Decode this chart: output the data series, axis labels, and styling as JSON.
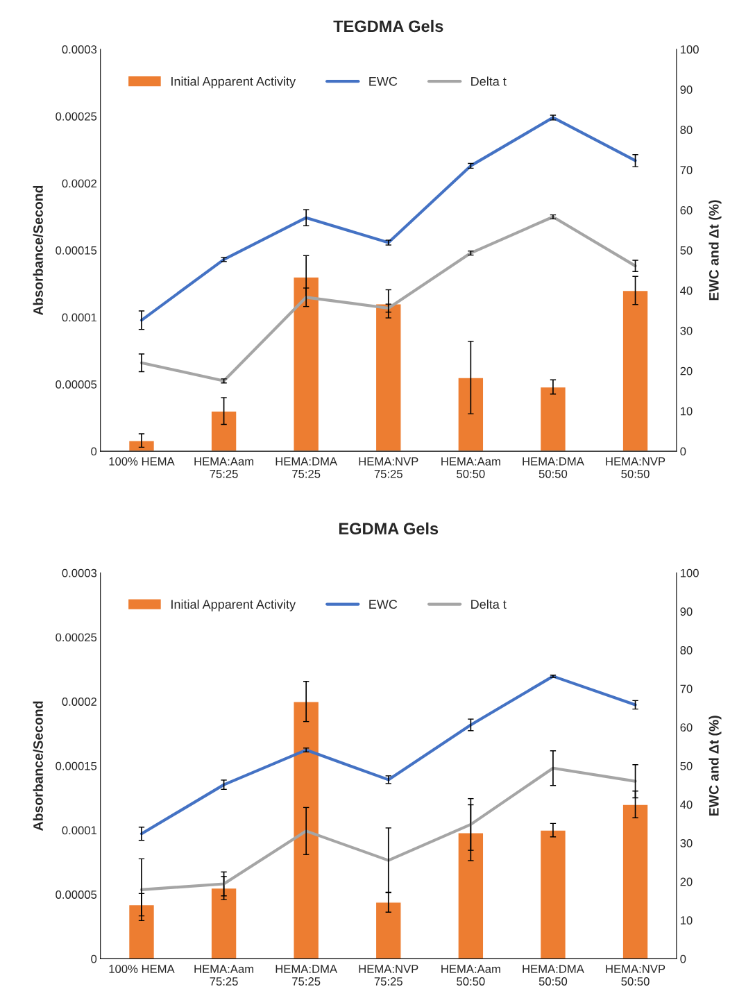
{
  "chart_data": [
    {
      "type": "bar",
      "title": "TEGDMA Gels",
      "ylabel": "Absorbance/Second",
      "y2label": "EWC and Δt (%)",
      "categories": [
        "100% HEMA",
        "HEMA:Aam\n75:25",
        "HEMA:DMA\n75:25",
        "HEMA:NVP\n75:25",
        "HEMA:Aam\n50:50",
        "HEMA:DMA\n50:50",
        "HEMA:NVP\n50:50"
      ],
      "ylim": [
        0,
        0.0003
      ],
      "yticks": [
        0,
        {
          "value": 5e-05,
          "label": "0.00005"
        },
        0.0001,
        0.00015,
        0.0002,
        0.00025,
        0.0003
      ],
      "y2lim": [
        0,
        100
      ],
      "y2ticks": [
        0,
        10,
        20,
        30,
        40,
        50,
        60,
        70,
        80,
        90,
        100
      ],
      "legend": "top left",
      "grid": false,
      "series": [
        {
          "name": "Initial Apparent Activity",
          "color": "#ed7d31",
          "values": [
            8e-06,
            3e-05,
            0.00013,
            0.00011,
            5.5e-05,
            4.8e-05,
            0.00012
          ],
          "errors": [
            5e-06,
            1e-05,
            1.6e-05,
            1.05e-05,
            2.7e-05,
            5.3e-06,
            1.05e-05
          ]
        },
        {
          "name": "EWC",
          "type": "line",
          "axis": "y2",
          "color": "#4472c4",
          "values": [
            32.6,
            47.7,
            58.1,
            51.9,
            71.0,
            83.0,
            72.3
          ],
          "errors": [
            2.3,
            0.5,
            2.0,
            0.6,
            0.6,
            0.6,
            1.5
          ]
        },
        {
          "name": "Delta t",
          "type": "line",
          "axis": "y2",
          "color": "#a5a5a5",
          "values": [
            22.0,
            17.5,
            38.3,
            35.6,
            49.3,
            58.3,
            46.1
          ],
          "errors": [
            2.2,
            0.5,
            2.3,
            1.0,
            0.5,
            0.5,
            1.4
          ]
        }
      ]
    },
    {
      "type": "bar",
      "title": "EGDMA Gels",
      "ylabel": "Absorbance/Second",
      "y2label": "EWC and Δt (%)",
      "categories": [
        "100% HEMA",
        "HEMA:Aam\n75:25",
        "HEMA:DMA\n75:25",
        "HEMA:NVP\n75:25",
        "HEMA:Aam\n50:50",
        "HEMA:DMA\n50:50",
        "HEMA:NVP\n50:50"
      ],
      "ylim": [
        0,
        0.0003
      ],
      "yticks": [
        0,
        {
          "value": 5e-05,
          "label": "0.00005"
        },
        0.0001,
        0.00015,
        0.0002,
        0.00025,
        0.0003
      ],
      "y2lim": [
        0,
        100
      ],
      "y2ticks": [
        0,
        10,
        20,
        30,
        40,
        50,
        60,
        70,
        80,
        90,
        100
      ],
      "legend": "top left",
      "grid": false,
      "series": [
        {
          "name": "Initial Apparent Activity",
          "color": "#ed7d31",
          "values": [
            4.2e-05,
            5.5e-05,
            0.0002,
            4.4e-05,
            9.8e-05,
            0.0001,
            0.00012
          ],
          "errors": [
            8.7e-06,
            9e-06,
            1.56e-05,
            7.8e-06,
            2.17e-05,
            5.2e-06,
            1.04e-05
          ]
        },
        {
          "name": "EWC",
          "type": "line",
          "axis": "y2",
          "color": "#4472c4",
          "values": [
            32.4,
            45.1,
            54.1,
            46.4,
            60.6,
            73.2,
            65.8
          ],
          "errors": [
            1.7,
            1.2,
            0.5,
            1.0,
            1.5,
            0.3,
            1.1
          ]
        },
        {
          "name": "Delta t",
          "type": "line",
          "axis": "y2",
          "color": "#a5a5a5",
          "values": [
            17.9,
            19.4,
            33.1,
            25.5,
            34.8,
            49.4,
            46.0
          ],
          "errors": [
            8.0,
            3.1,
            6.1,
            8.4,
            6.7,
            4.5,
            4.3
          ]
        }
      ]
    }
  ]
}
